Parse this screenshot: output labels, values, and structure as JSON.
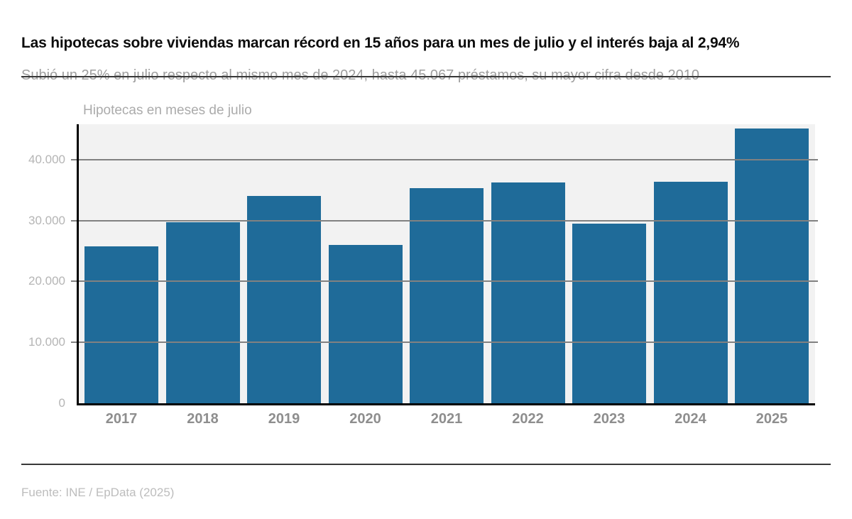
{
  "header": {
    "title": "Las hipotecas sobre viviendas marcan récord en 15 años para un mes de julio y el interés baja al 2,94%",
    "subtitle": "Subió un 25% en julio respecto al mismo mes de 2024, hasta 45.067 préstamos, su mayor cifra desde 2010"
  },
  "footer": {
    "source": "Fuente: INE / EpData (2025)"
  },
  "chart_data": {
    "type": "bar",
    "title": "Hipotecas en meses de julio",
    "categories": [
      "2017",
      "2018",
      "2019",
      "2020",
      "2021",
      "2022",
      "2023",
      "2024",
      "2025"
    ],
    "values": [
      25800,
      29700,
      34000,
      26000,
      35300,
      36200,
      29500,
      36400,
      45067
    ],
    "xlabel": "",
    "ylabel": "",
    "ylim": [
      0,
      45800
    ],
    "yticks": [
      {
        "value": 0,
        "label": "0"
      },
      {
        "value": 10000,
        "label": "10.000"
      },
      {
        "value": 20000,
        "label": "20.000"
      },
      {
        "value": 30000,
        "label": "30.000"
      },
      {
        "value": 40000,
        "label": "40.000"
      }
    ],
    "grid": "horizontal-over-bars",
    "legend": "none",
    "colors": {
      "bar": "#1f6b99",
      "plot_background": "#f2f2f2",
      "gridline": "#818181",
      "axis": "#000000",
      "tick_label": "#b5b5b5",
      "category_label": "#8e8e8e"
    }
  }
}
